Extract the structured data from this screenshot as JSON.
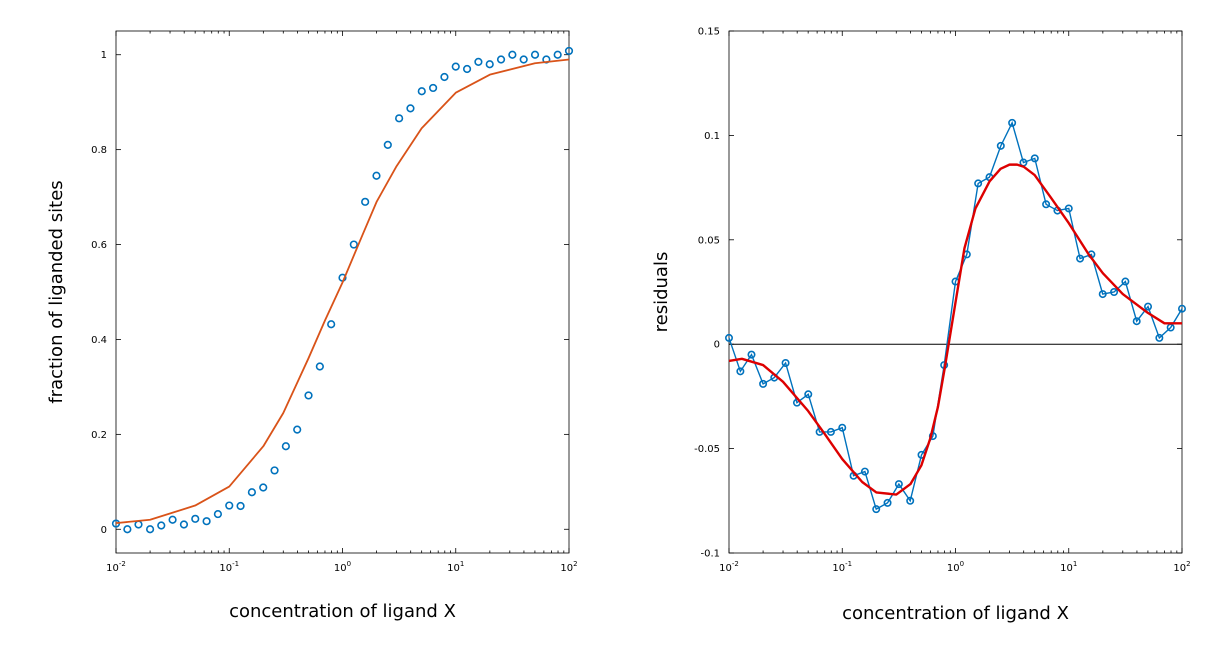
{
  "chart_data": [
    {
      "type": "scatter",
      "xscale": "log",
      "xlim": [
        0.01,
        100
      ],
      "ylim": [
        -0.05,
        1.05
      ],
      "xticks": [
        0.01,
        0.1,
        1,
        10,
        100
      ],
      "xtick_labels": [
        {
          "base": "10",
          "exp": "-2"
        },
        {
          "base": "10",
          "exp": "-1"
        },
        {
          "base": "10",
          "exp": "0"
        },
        {
          "base": "10",
          "exp": "1"
        },
        {
          "base": "10",
          "exp": "2"
        }
      ],
      "yticks": [
        0,
        0.2,
        0.4,
        0.6,
        0.8,
        1
      ],
      "ytick_labels": [
        "0",
        "0.2",
        "0.4",
        "0.6",
        "0.8",
        "1"
      ],
      "xlabel": "concentration of ligand X",
      "ylabel": "fraction of liganded sites",
      "colors": {
        "points": "#0072bd",
        "fit": "#d95319"
      },
      "series": [
        {
          "kind": "points",
          "x": [
            0.01,
            0.0126,
            0.0158,
            0.02,
            0.0251,
            0.0316,
            0.0398,
            0.0501,
            0.0631,
            0.0794,
            0.1,
            0.1259,
            0.1585,
            0.1995,
            0.2512,
            0.3162,
            0.3981,
            0.5012,
            0.631,
            0.7943,
            1,
            1.2589,
            1.5849,
            1.9953,
            2.5119,
            3.1623,
            3.9811,
            5.0119,
            6.3096,
            7.9433,
            10,
            12.589,
            15.849,
            19.953,
            25.119,
            31.623,
            39.811,
            50.119,
            63.096,
            79.433,
            100
          ],
          "y": [
            0.012,
            0.0,
            0.01,
            0.0,
            0.008,
            0.02,
            0.01,
            0.022,
            0.017,
            0.032,
            0.05,
            0.049,
            0.078,
            0.088,
            0.124,
            0.175,
            0.21,
            0.282,
            0.343,
            0.432,
            0.53,
            0.6,
            0.69,
            0.745,
            0.81,
            0.866,
            0.887,
            0.923,
            0.93,
            0.953,
            0.975,
            0.97,
            0.985,
            0.98,
            0.99,
            1.0,
            0.99,
            1.0,
            0.99,
            1.0,
            1.008
          ]
        },
        {
          "kind": "line",
          "x": [
            0.01,
            0.02,
            0.05,
            0.1,
            0.2,
            0.3,
            0.5,
            0.7,
            1,
            1.5,
            2,
            3,
            5,
            10,
            20,
            50,
            100
          ],
          "y": [
            0.013,
            0.02,
            0.05,
            0.09,
            0.175,
            0.245,
            0.36,
            0.44,
            0.52,
            0.62,
            0.69,
            0.765,
            0.845,
            0.92,
            0.958,
            0.982,
            0.99
          ]
        }
      ]
    },
    {
      "type": "line",
      "xscale": "log",
      "xlim": [
        0.01,
        100
      ],
      "ylim": [
        -0.1,
        0.15
      ],
      "xticks": [
        0.01,
        0.1,
        1,
        10,
        100
      ],
      "xtick_labels": [
        {
          "base": "10",
          "exp": "-2"
        },
        {
          "base": "10",
          "exp": "-1"
        },
        {
          "base": "10",
          "exp": "0"
        },
        {
          "base": "10",
          "exp": "1"
        },
        {
          "base": "10",
          "exp": "2"
        }
      ],
      "yticks": [
        -0.1,
        -0.05,
        0,
        0.05,
        0.1,
        0.15
      ],
      "ytick_labels": [
        "-0.1",
        "-0.05",
        "0",
        "0.05",
        "0.1",
        "0.15"
      ],
      "xlabel": "concentration of ligand X",
      "ylabel": "residuals",
      "zero_line": true,
      "colors": {
        "points": "#0072bd",
        "fit": "#dd0000"
      },
      "series": [
        {
          "kind": "points-line",
          "x": [
            0.01,
            0.0126,
            0.0158,
            0.02,
            0.0251,
            0.0316,
            0.0398,
            0.0501,
            0.0631,
            0.0794,
            0.1,
            0.1259,
            0.1585,
            0.1995,
            0.2512,
            0.3162,
            0.3981,
            0.5012,
            0.631,
            0.7943,
            1,
            1.2589,
            1.5849,
            1.9953,
            2.5119,
            3.1623,
            3.9811,
            5.0119,
            6.3096,
            7.9433,
            10,
            12.589,
            15.849,
            19.953,
            25.119,
            31.623,
            39.811,
            50.119,
            63.096,
            79.433,
            100
          ],
          "y": [
            0.003,
            -0.013,
            -0.005,
            -0.019,
            -0.016,
            -0.009,
            -0.028,
            -0.024,
            -0.042,
            -0.042,
            -0.04,
            -0.063,
            -0.061,
            -0.079,
            -0.076,
            -0.067,
            -0.075,
            -0.053,
            -0.044,
            -0.01,
            0.03,
            0.043,
            0.077,
            0.08,
            0.095,
            0.106,
            0.087,
            0.089,
            0.067,
            0.064,
            0.065,
            0.041,
            0.043,
            0.024,
            0.025,
            0.03,
            0.011,
            0.018,
            0.003,
            0.008,
            0.017
          ]
        },
        {
          "kind": "line",
          "x": [
            0.01,
            0.013,
            0.02,
            0.03,
            0.05,
            0.07,
            0.1,
            0.15,
            0.2,
            0.3,
            0.4,
            0.5,
            0.6,
            0.7,
            0.8,
            1,
            1.2,
            1.5,
            2,
            2.5,
            3,
            3.5,
            4,
            5,
            7,
            10,
            15,
            20,
            30,
            50,
            70,
            100
          ],
          "y": [
            -0.008,
            -0.007,
            -0.01,
            -0.018,
            -0.032,
            -0.043,
            -0.055,
            -0.066,
            -0.071,
            -0.072,
            -0.067,
            -0.058,
            -0.045,
            -0.03,
            -0.012,
            0.02,
            0.046,
            0.065,
            0.078,
            0.084,
            0.086,
            0.086,
            0.085,
            0.081,
            0.07,
            0.058,
            0.043,
            0.034,
            0.024,
            0.015,
            0.01,
            0.01
          ]
        }
      ]
    }
  ]
}
